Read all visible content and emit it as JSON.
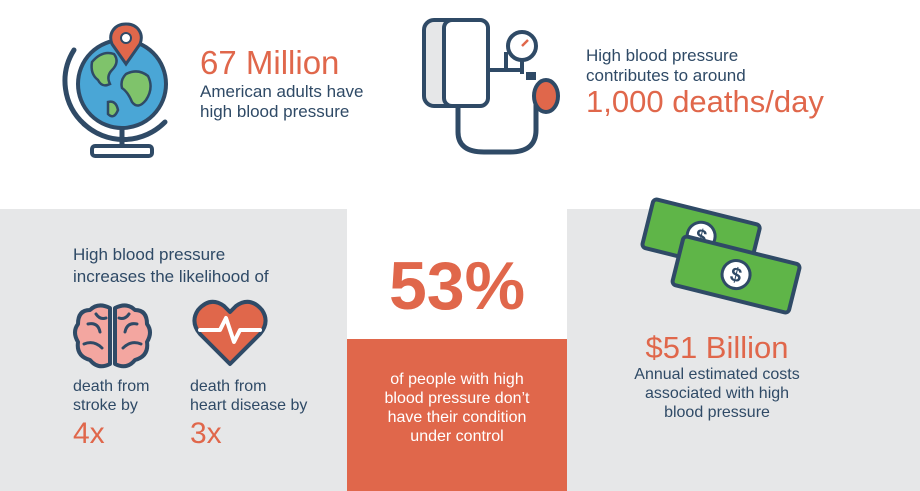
{
  "top_left": {
    "number": "67 Million",
    "lines": [
      "American adults have",
      "high blood pressure"
    ]
  },
  "top_right": {
    "lines": [
      "High blood pressure",
      "contributes to around"
    ],
    "number": "1,000 deaths/day"
  },
  "likelihood": {
    "heading_lines": [
      "High blood pressure",
      "increases the likelihood of"
    ],
    "stroke": {
      "lines": [
        "death from",
        "stroke by"
      ],
      "multiplier": "4x"
    },
    "heart": {
      "lines": [
        "death from",
        "heart disease by"
      ],
      "multiplier": "3x"
    }
  },
  "control": {
    "percent": "53%",
    "lines": [
      "of people with high",
      "blood pressure don’t",
      "have their condition",
      "under control"
    ]
  },
  "cost": {
    "number": "$51 Billion",
    "lines": [
      "Annual estimated costs",
      "associated with high",
      "blood pressure"
    ]
  },
  "icons": [
    "globe-icon",
    "location-pin-icon",
    "blood-pressure-cuff-icon",
    "brain-icon",
    "heart-pulse-icon",
    "money-bills-icon"
  ],
  "colors": {
    "accent": "#e0674b",
    "text": "#2f4a66",
    "panel": "#e6e7e8"
  }
}
